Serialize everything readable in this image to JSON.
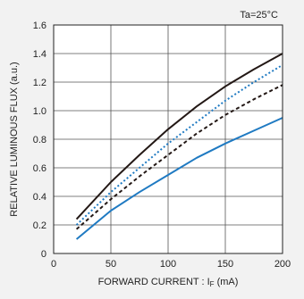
{
  "chart_data": {
    "type": "line",
    "annotation": "Ta=25°C",
    "xlabel": "FORWARD CURRENT : I",
    "xlabel_sub": "F",
    "xlabel_unit": " (mA)",
    "ylabel": "RELATIVE LUMINOUS FLUX (a.u.)",
    "xlim": [
      0,
      200
    ],
    "ylim": [
      0,
      1.6
    ],
    "x_ticks": [
      0,
      50,
      100,
      150,
      200
    ],
    "y_ticks": [
      0,
      0.2,
      0.4,
      0.6,
      0.8,
      1.0,
      1.2,
      1.4,
      1.6
    ],
    "y_tick_labels": [
      "0",
      "0.2",
      "0.4",
      "0.6",
      "0.8",
      "1.0",
      "1.2",
      "1.4",
      "1.6"
    ],
    "grid": true,
    "series": [
      {
        "color": "#231815",
        "dash": "solid",
        "x": [
          20,
          50,
          75,
          100,
          125,
          150,
          175,
          200
        ],
        "y": [
          0.24,
          0.5,
          0.69,
          0.87,
          1.03,
          1.17,
          1.29,
          1.4
        ]
      },
      {
        "color": "#1f7ac2",
        "dash": "dotted",
        "x": [
          20,
          50,
          75,
          100,
          125,
          150,
          175,
          200
        ],
        "y": [
          0.2,
          0.43,
          0.6,
          0.77,
          0.92,
          1.07,
          1.2,
          1.32
        ]
      },
      {
        "color": "#231815",
        "dash": "dashed",
        "x": [
          20,
          50,
          75,
          100,
          125,
          150,
          175,
          200
        ],
        "y": [
          0.17,
          0.38,
          0.54,
          0.69,
          0.84,
          0.97,
          1.08,
          1.18
        ]
      },
      {
        "color": "#1f7ac2",
        "dash": "solid",
        "x": [
          20,
          50,
          75,
          100,
          125,
          150,
          175,
          200
        ],
        "y": [
          0.1,
          0.3,
          0.43,
          0.55,
          0.67,
          0.77,
          0.86,
          0.95
        ]
      }
    ]
  }
}
